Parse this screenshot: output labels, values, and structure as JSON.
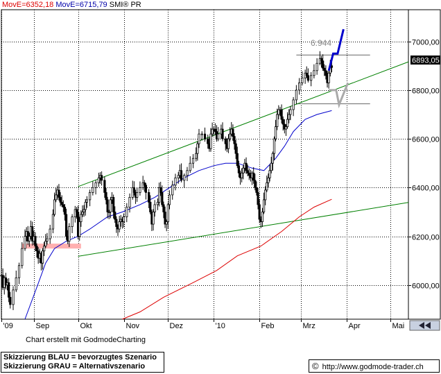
{
  "header": {
    "move_red": "MovE=6352,18",
    "move_blue": "MovE=6715,79",
    "title": "SMI® PR"
  },
  "footer": {
    "caption": "Chart erstellt mit GodmodeCharting",
    "scenario_blue": "Skizzierung BLAU = bevorzugtes Szenario",
    "scenario_gray": "Skizzierung GRAU = Alternativszenario",
    "copyright_symbol": "©",
    "url": "http://www.godmode-trader.ch"
  },
  "chart_data": {
    "type": "candlestick",
    "title": "SMI® PR",
    "ylim": [
      5860,
      7130
    ],
    "y_ticks": [
      "7000,00",
      "6800,00",
      "6600,00",
      "6400,00",
      "6200,00",
      "6000,00"
    ],
    "y_tick_values": [
      7000,
      6800,
      6600,
      6400,
      6200,
      6000
    ],
    "x_labels": [
      "'09",
      "Sep",
      "Okt",
      "Nov",
      "Dez",
      "'10",
      "Feb",
      "Mrz",
      "Apr",
      "Mai"
    ],
    "x_label_days": [
      0,
      22,
      52,
      83,
      113,
      144,
      175,
      203,
      234,
      264
    ],
    "x_range_days": [
      0,
      276
    ],
    "last_price": "6893,05",
    "annotation_high": "6.944",
    "colors": {
      "price": "#000000",
      "ma_blue": "#0000cc",
      "ma_red": "#dd0000",
      "channel": "#008000",
      "scenario_blue": "#0000cc",
      "scenario_gray": "#aaaaaa",
      "level_lines": "#777777",
      "zone": "#ffb0b0"
    },
    "price_anchors": [
      [
        0,
        6040
      ],
      [
        1,
        5990
      ],
      [
        2,
        6030
      ],
      [
        3,
        6000
      ],
      [
        4,
        6010
      ],
      [
        5,
        5950
      ],
      [
        6,
        5920
      ],
      [
        8,
        5980
      ],
      [
        10,
        6030
      ],
      [
        12,
        6080
      ],
      [
        14,
        6150
      ],
      [
        16,
        6200
      ],
      [
        17,
        6220
      ],
      [
        18,
        6180
      ],
      [
        19,
        6200
      ],
      [
        20,
        6240
      ],
      [
        21,
        6180
      ],
      [
        22,
        6200
      ],
      [
        23,
        6160
      ],
      [
        24,
        6140
      ],
      [
        25,
        6110
      ],
      [
        26,
        6130
      ],
      [
        27,
        6090
      ],
      [
        28,
        6140
      ],
      [
        29,
        6160
      ],
      [
        30,
        6180
      ],
      [
        31,
        6190
      ],
      [
        33,
        6230
      ],
      [
        35,
        6290
      ],
      [
        36,
        6350
      ],
      [
        37,
        6370
      ],
      [
        38,
        6390
      ],
      [
        39,
        6360
      ],
      [
        40,
        6340
      ],
      [
        41,
        6330
      ],
      [
        42,
        6320
      ],
      [
        43,
        6290
      ],
      [
        44,
        6200
      ],
      [
        45,
        6180
      ],
      [
        46,
        6240
      ],
      [
        48,
        6280
      ],
      [
        50,
        6310
      ],
      [
        51,
        6300
      ],
      [
        52,
        6200
      ],
      [
        53,
        6260
      ],
      [
        54,
        6290
      ],
      [
        55,
        6300
      ],
      [
        56,
        6310
      ],
      [
        57,
        6340
      ],
      [
        58,
        6350
      ],
      [
        60,
        6380
      ],
      [
        62,
        6400
      ],
      [
        64,
        6420
      ],
      [
        66,
        6440
      ],
      [
        67,
        6450
      ],
      [
        68,
        6430
      ],
      [
        70,
        6380
      ],
      [
        71,
        6350
      ],
      [
        72,
        6300
      ],
      [
        73,
        6300
      ],
      [
        74,
        6350
      ],
      [
        75,
        6360
      ],
      [
        76,
        6300
      ],
      [
        77,
        6270
      ],
      [
        78,
        6240
      ],
      [
        79,
        6230
      ],
      [
        80,
        6260
      ],
      [
        81,
        6270
      ],
      [
        82,
        6260
      ],
      [
        83,
        6280
      ],
      [
        85,
        6320
      ],
      [
        87,
        6360
      ],
      [
        89,
        6400
      ],
      [
        90,
        6380
      ],
      [
        91,
        6360
      ],
      [
        92,
        6380
      ],
      [
        94,
        6400
      ],
      [
        96,
        6420
      ],
      [
        97,
        6410
      ],
      [
        98,
        6380
      ],
      [
        100,
        6340
      ],
      [
        101,
        6300
      ],
      [
        102,
        6250
      ],
      [
        103,
        6300
      ],
      [
        104,
        6330
      ],
      [
        106,
        6340
      ],
      [
        107,
        6400
      ],
      [
        108,
        6380
      ],
      [
        109,
        6330
      ],
      [
        110,
        6300
      ],
      [
        111,
        6250
      ],
      [
        112,
        6260
      ],
      [
        113,
        6330
      ],
      [
        114,
        6370
      ],
      [
        116,
        6410
      ],
      [
        118,
        6440
      ],
      [
        120,
        6450
      ],
      [
        121,
        6470
      ],
      [
        122,
        6430
      ],
      [
        124,
        6450
      ],
      [
        126,
        6470
      ],
      [
        128,
        6500
      ],
      [
        130,
        6520
      ],
      [
        132,
        6540
      ],
      [
        133,
        6580
      ],
      [
        134,
        6620
      ],
      [
        136,
        6620
      ],
      [
        138,
        6600
      ],
      [
        140,
        6580
      ],
      [
        141,
        6560
      ],
      [
        142,
        6620
      ],
      [
        143,
        6640
      ],
      [
        144,
        6640
      ],
      [
        145,
        6630
      ],
      [
        146,
        6600
      ],
      [
        147,
        6620
      ],
      [
        149,
        6640
      ],
      [
        150,
        6600
      ],
      [
        152,
        6580
      ],
      [
        153,
        6560
      ],
      [
        154,
        6600
      ],
      [
        155,
        6620
      ],
      [
        156,
        6640
      ],
      [
        157,
        6610
      ],
      [
        158,
        6580
      ],
      [
        159,
        6540
      ],
      [
        160,
        6490
      ],
      [
        161,
        6460
      ],
      [
        162,
        6440
      ],
      [
        163,
        6460
      ],
      [
        164,
        6480
      ],
      [
        165,
        6500
      ],
      [
        166,
        6470
      ],
      [
        167,
        6460
      ],
      [
        168,
        6450
      ],
      [
        169,
        6440
      ],
      [
        170,
        6460
      ],
      [
        171,
        6430
      ],
      [
        172,
        6400
      ],
      [
        173,
        6380
      ],
      [
        174,
        6330
      ],
      [
        175,
        6270
      ],
      [
        176,
        6260
      ],
      [
        177,
        6300
      ],
      [
        178,
        6350
      ],
      [
        179,
        6390
      ],
      [
        180,
        6420
      ],
      [
        181,
        6440
      ],
      [
        182,
        6470
      ],
      [
        183,
        6500
      ],
      [
        184,
        6540
      ],
      [
        185,
        6600
      ],
      [
        186,
        6650
      ],
      [
        187,
        6700
      ],
      [
        188,
        6720
      ],
      [
        189,
        6720
      ],
      [
        190,
        6680
      ],
      [
        191,
        6660
      ],
      [
        192,
        6640
      ],
      [
        193,
        6650
      ],
      [
        194,
        6680
      ],
      [
        195,
        6700
      ],
      [
        196,
        6720
      ],
      [
        198,
        6760
      ],
      [
        200,
        6800
      ],
      [
        202,
        6830
      ],
      [
        204,
        6850
      ],
      [
        206,
        6870
      ],
      [
        207,
        6860
      ],
      [
        208,
        6840
      ],
      [
        210,
        6860
      ],
      [
        212,
        6880
      ],
      [
        214,
        6910
      ],
      [
        216,
        6930
      ],
      [
        217,
        6920
      ],
      [
        218,
        6890
      ],
      [
        219,
        6880
      ],
      [
        220,
        6860
      ],
      [
        221,
        6830
      ],
      [
        222,
        6870
      ],
      [
        223,
        6900
      ],
      [
        224,
        6893
      ]
    ],
    "ma_blue": [
      [
        16,
        5860
      ],
      [
        24,
        5990
      ],
      [
        30,
        6090
      ],
      [
        36,
        6150
      ],
      [
        44,
        6180
      ],
      [
        52,
        6200
      ],
      [
        60,
        6230
      ],
      [
        72,
        6280
      ],
      [
        82,
        6300
      ],
      [
        94,
        6330
      ],
      [
        104,
        6360
      ],
      [
        114,
        6400
      ],
      [
        124,
        6440
      ],
      [
        134,
        6470
      ],
      [
        144,
        6490
      ],
      [
        152,
        6500
      ],
      [
        160,
        6500
      ],
      [
        170,
        6480
      ],
      [
        178,
        6470
      ],
      [
        186,
        6520
      ],
      [
        192,
        6570
      ],
      [
        198,
        6630
      ],
      [
        206,
        6680
      ],
      [
        214,
        6700
      ],
      [
        224,
        6716
      ]
    ],
    "ma_red": [
      [
        82,
        5860
      ],
      [
        94,
        5890
      ],
      [
        110,
        5950
      ],
      [
        130,
        6010
      ],
      [
        146,
        6060
      ],
      [
        160,
        6120
      ],
      [
        176,
        6160
      ],
      [
        190,
        6220
      ],
      [
        202,
        6280
      ],
      [
        212,
        6320
      ],
      [
        224,
        6352
      ]
    ],
    "channel_upper": [
      [
        52,
        6404
      ],
      [
        276,
        6916
      ]
    ],
    "channel_lower": [
      [
        52,
        6118
      ],
      [
        276,
        6339
      ]
    ],
    "level_high": 6944,
    "level_low": 6744,
    "level_lines_start_day": 200,
    "scenario_blue_path": [
      [
        222,
        6880
      ],
      [
        225,
        6950
      ],
      [
        228,
        6950
      ],
      [
        232,
        7050
      ]
    ],
    "scenario_gray_path": [
      [
        222,
        6800
      ],
      [
        227,
        6800
      ],
      [
        229,
        6740
      ],
      [
        235,
        6830
      ]
    ],
    "zone": {
      "day_start": 14,
      "day_end": 54,
      "y_top": 6170,
      "y_bottom": 6150
    }
  }
}
